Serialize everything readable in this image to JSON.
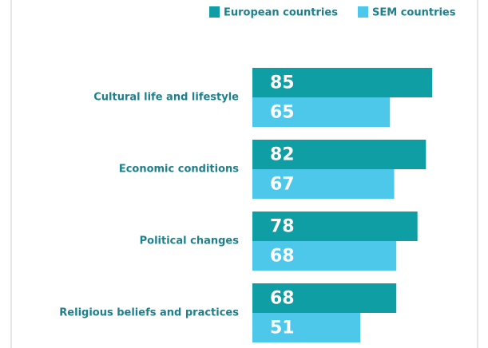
{
  "chart_data": {
    "type": "hbar",
    "categories": [
      "Cultural life and lifestyle",
      "Economic conditions",
      "Political changes",
      "Religious beliefs and practices"
    ],
    "series": [
      {
        "name": "European countries",
        "color": "#0f9ea3",
        "values": [
          85,
          82,
          78,
          68
        ]
      },
      {
        "name": "SEM countries",
        "color": "#4ec8ea",
        "values": [
          65,
          67,
          68,
          51
        ]
      }
    ],
    "xlim": [
      0,
      100
    ]
  }
}
